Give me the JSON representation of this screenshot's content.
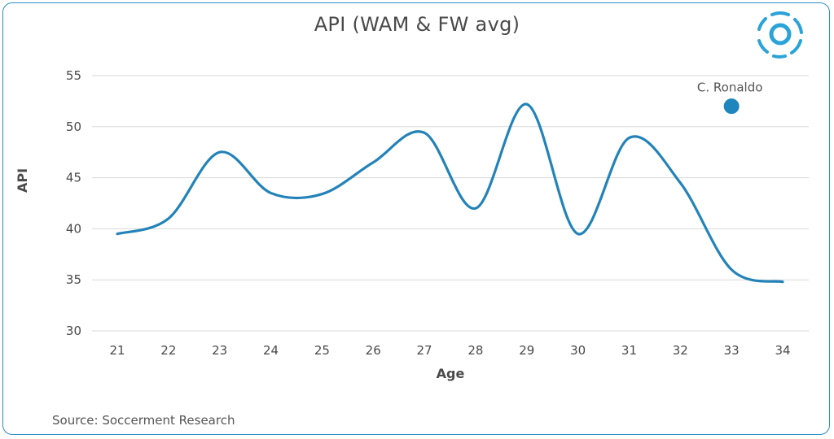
{
  "chart_data": {
    "type": "line",
    "title": "API (WAM & FW avg)",
    "xlabel": "Age",
    "ylabel": "API",
    "x": [
      21,
      22,
      23,
      24,
      25,
      26,
      27,
      28,
      29,
      30,
      31,
      32,
      33,
      34
    ],
    "series": [
      {
        "values": [
          39.5,
          41.0,
          47.5,
          43.5,
          43.4,
          46.5,
          49.4,
          42.0,
          52.2,
          39.5,
          48.9,
          44.5,
          36.0,
          34.8
        ],
        "color": "#2383b8"
      }
    ],
    "annotation": {
      "label": "C. Ronaldo",
      "x": 33,
      "y": 52.0,
      "color": "#1f86bd"
    },
    "ylim": [
      30,
      55
    ],
    "yticks": [
      30,
      35,
      40,
      45,
      50,
      55
    ],
    "grid": true,
    "legend": "none"
  },
  "source": "Source: Soccerment Research",
  "colors": {
    "frame": "#2b8fc4",
    "line": "#2383b8",
    "grid": "#d9d9d9",
    "text": "#4a4a4a"
  },
  "logo_icon": "soccerment-logo-icon"
}
